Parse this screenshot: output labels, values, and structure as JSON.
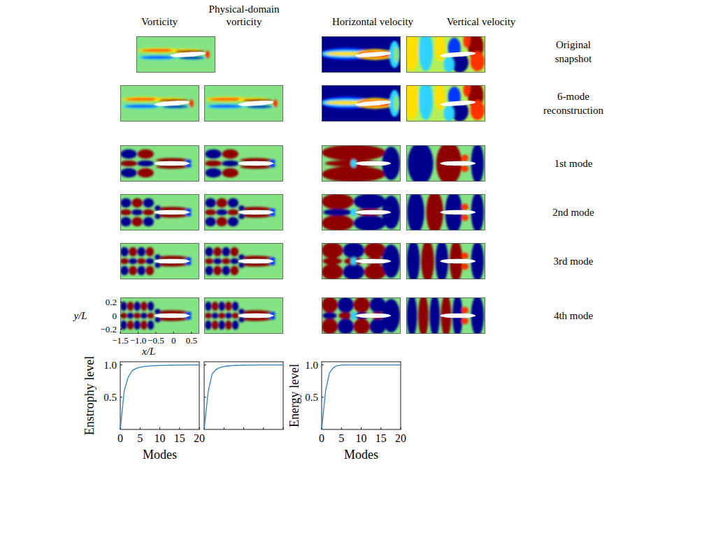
{
  "header": {
    "columns": [
      "Vorticity",
      "Physical-domain vorticity",
      "Horizontal velocity",
      "Vertical velocity"
    ],
    "rows": [
      "Original snapshot",
      "6-mode reconstruction",
      "1st mode",
      "2nd mode",
      "3rd mode",
      "4th mode"
    ]
  },
  "field_axes": {
    "xlabel": "x/L",
    "ylabel": "y/L",
    "xlim": [
      -1.5,
      0.72
    ],
    "ylim": [
      -0.27,
      0.27
    ],
    "xticks": [
      {
        "value": -1.5,
        "label": "−1.5"
      },
      {
        "value": -1,
        "label": "−1.0"
      },
      {
        "value": -0.5,
        "label": "−0.5"
      },
      0,
      0.5
    ],
    "yticks": [
      0.2,
      0,
      {
        "value": -0.2,
        "label": "−0.2"
      }
    ]
  },
  "chart_data": [
    {
      "type": "line",
      "xlabel": "Modes",
      "ylabel": "Enstrophy level",
      "color": "#2f7fc1",
      "x": [
        0,
        1,
        2,
        3,
        4,
        5,
        6,
        7,
        8,
        9,
        10,
        11,
        12,
        13,
        14,
        15,
        16,
        17,
        18,
        19,
        20
      ],
      "values": [
        0,
        0.6,
        0.81,
        0.91,
        0.945,
        0.965,
        0.975,
        0.982,
        0.987,
        0.99,
        0.992,
        0.994,
        0.995,
        0.996,
        0.997,
        0.998,
        0.998,
        0.999,
        0.999,
        1.0,
        1.0
      ],
      "xlim": [
        0,
        20
      ],
      "ylim": [
        0,
        1.05
      ],
      "xticks": [
        0,
        5,
        10,
        15,
        20
      ],
      "yticks": [
        0.5,
        {
          "value": 1,
          "label": "1.0"
        }
      ]
    },
    {
      "type": "line",
      "color": "#2f7fc1",
      "tick_labels": false,
      "x": [
        0,
        1,
        2,
        3,
        4,
        5,
        6,
        7,
        8,
        9,
        10,
        11,
        12,
        13,
        14,
        15,
        16,
        17,
        18,
        19,
        20
      ],
      "values": [
        0,
        0.58,
        0.86,
        0.93,
        0.96,
        0.975,
        0.985,
        0.99,
        0.993,
        0.995,
        0.996,
        0.997,
        0.998,
        0.998,
        0.999,
        0.999,
        0.999,
        1.0,
        1.0,
        1.0,
        1.0
      ],
      "xlim": [
        0,
        20
      ],
      "ylim": [
        0,
        1.05
      ],
      "xticks": [
        0,
        5,
        10,
        15,
        20
      ],
      "yticks": [
        0.5,
        1
      ]
    },
    {
      "type": "line",
      "xlabel": "Modes",
      "ylabel": "Energy level",
      "color": "#2f7fc1",
      "x": [
        0,
        1,
        2,
        3,
        4,
        5,
        6,
        7,
        8,
        9,
        10,
        11,
        12,
        13,
        14,
        15,
        16,
        17,
        18,
        19,
        20
      ],
      "values": [
        0,
        0.6,
        0.88,
        0.96,
        0.99,
        0.997,
        0.999,
        1.0,
        1.0,
        1.0,
        1.0,
        1.0,
        1.0,
        1.0,
        1.0,
        1.0,
        1.0,
        1.0,
        1.0,
        1.0,
        1.0
      ],
      "xlim": [
        0,
        20
      ],
      "ylim": [
        0,
        1.05
      ],
      "xticks": [
        0,
        5,
        10,
        15,
        20
      ],
      "yticks": [
        0.5,
        {
          "value": 1,
          "label": "1.0"
        }
      ]
    }
  ]
}
